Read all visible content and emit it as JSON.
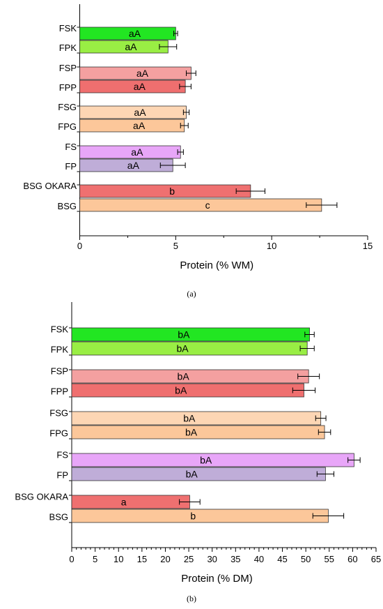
{
  "colors": {
    "FSK": "#22e622",
    "FPK": "#99ee44",
    "FSP": "#f4a0a0",
    "FPP": "#ef6f6f",
    "FSG": "#fdd6b4",
    "FPG": "#fcc79a",
    "FS": "#e8a6f8",
    "FP": "#bfadd8",
    "BSG OKARA": "#ef7070",
    "BSG": "#fcc79a"
  },
  "chart_data": [
    {
      "type": "bar",
      "orientation": "horizontal",
      "panel_label": "(a)",
      "xlabel": "Protein (% WM)",
      "xlim": [
        0,
        15
      ],
      "xticks": [
        0,
        5,
        10,
        15
      ],
      "categories": [
        "FSK",
        "FPK",
        "FSP",
        "FPP",
        "FSG",
        "FPG",
        "FS",
        "FP",
        "BSG OKARA",
        "BSG"
      ],
      "values": [
        5.0,
        4.6,
        5.8,
        5.5,
        5.55,
        5.45,
        5.25,
        4.85,
        8.9,
        12.6
      ],
      "errors": [
        0.1,
        0.45,
        0.25,
        0.3,
        0.15,
        0.2,
        0.15,
        0.65,
        0.75,
        0.8
      ],
      "bar_labels": [
        "aA",
        "aA",
        "aA",
        "aA",
        "aA",
        "aA",
        "aA",
        "aA",
        "b",
        "c"
      ]
    },
    {
      "type": "bar",
      "orientation": "horizontal",
      "panel_label": "(b)",
      "xlabel": "Protein (% DM)",
      "xlim": [
        0,
        65
      ],
      "xticks": [
        0,
        5,
        10,
        15,
        20,
        25,
        30,
        35,
        40,
        45,
        50,
        55,
        60,
        65
      ],
      "categories": [
        "FSK",
        "FPK",
        "FSP",
        "FPP",
        "FSG",
        "FPG",
        "FS",
        "FP",
        "BSG OKARA",
        "BSG"
      ],
      "values": [
        50.8,
        50.3,
        50.6,
        49.6,
        53.2,
        54.0,
        60.3,
        54.2,
        25.2,
        54.8
      ],
      "errors": [
        1.0,
        1.5,
        2.3,
        2.4,
        1.1,
        1.3,
        1.3,
        1.8,
        2.2,
        3.3
      ],
      "bar_labels": [
        "bA",
        "bA",
        "bA",
        "bA",
        "bA",
        "bA",
        "bA",
        "bA",
        "a",
        "b"
      ]
    }
  ]
}
